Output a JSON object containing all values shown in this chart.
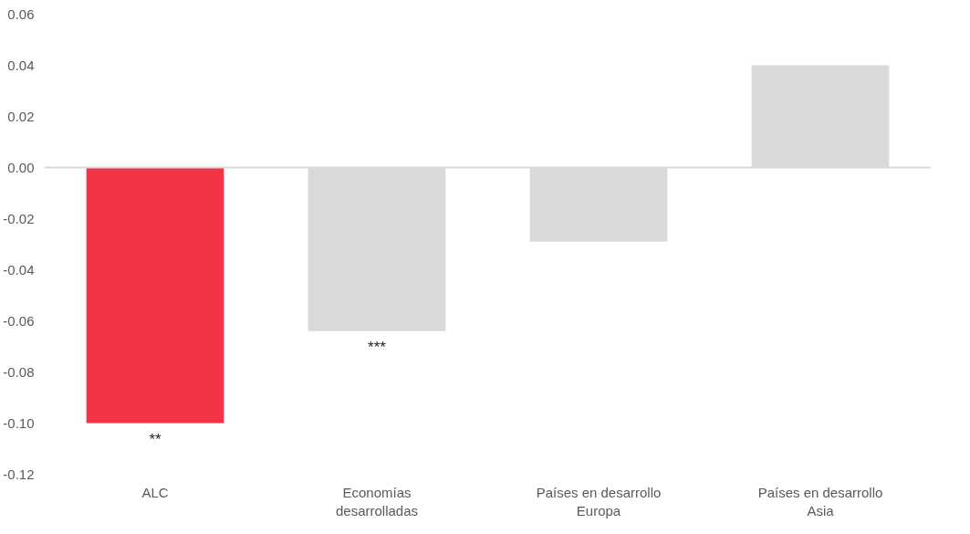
{
  "chart_data": {
    "type": "bar",
    "categories": [
      "ALC",
      "Economías\ndesarrolladas",
      "Países en desarrollo\nEuropa",
      "Países en desarrollo\nAsia"
    ],
    "values": [
      -0.1,
      -0.064,
      -0.029,
      0.04
    ],
    "colors": [
      "#f33346",
      "#d9d9d9",
      "#d9d9d9",
      "#d9d9d9"
    ],
    "ylim": [
      -0.12,
      0.06
    ],
    "yticks": [
      {
        "value": 0.06,
        "label": "0.06"
      },
      {
        "value": 0.04,
        "label": "0.04"
      },
      {
        "value": 0.02,
        "label": "0.02"
      },
      {
        "value": 0.0,
        "label": "0.00"
      },
      {
        "value": -0.02,
        "label": "-0.02"
      },
      {
        "value": -0.04,
        "label": "-0.04"
      },
      {
        "value": -0.06,
        "label": "-0.06"
      },
      {
        "value": -0.08,
        "label": "-0.08"
      },
      {
        "value": -0.1,
        "label": "-0.10"
      },
      {
        "value": -0.12,
        "label": "-0.12"
      }
    ],
    "annotations": [
      "**",
      "***"
    ],
    "ref_lines": [
      {
        "axis": "y",
        "value": 0,
        "color": "#d9d9d9"
      }
    ],
    "grid": false
  }
}
